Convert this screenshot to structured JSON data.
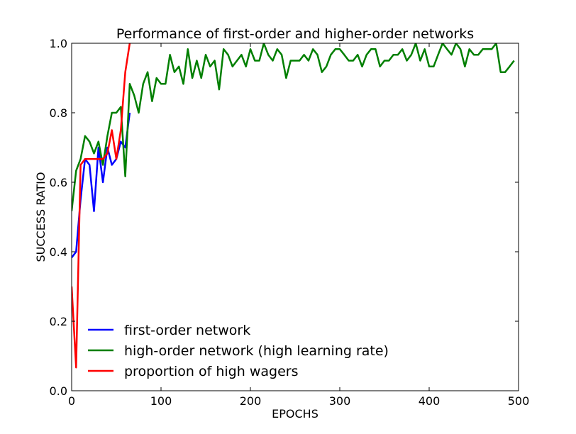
{
  "chart_data": {
    "type": "line",
    "title": "Performance of first-order and higher-order networks",
    "xlabel": "EPOCHS",
    "ylabel": "SUCCESS RATIO",
    "xlim": [
      0,
      500
    ],
    "ylim": [
      0,
      1
    ],
    "xticks": [
      "0",
      "100",
      "200",
      "300",
      "400",
      "500"
    ],
    "yticks": [
      "0.0",
      "0.2",
      "0.4",
      "0.6",
      "0.8",
      "1.0"
    ],
    "grid": false,
    "legend": "lower-left",
    "series": [
      {
        "name": "first-order network",
        "color": "#0000ff",
        "x": [
          0,
          5,
          10,
          15,
          20,
          25,
          30,
          35,
          40,
          45,
          50,
          55,
          60,
          65
        ],
        "y": [
          0.383,
          0.4,
          0.55,
          0.667,
          0.65,
          0.517,
          0.7,
          0.6,
          0.7,
          0.65,
          0.667,
          0.717,
          0.7,
          0.8
        ]
      },
      {
        "name": "high-order network (high learning rate)",
        "color": "#007f00",
        "x": [
          0,
          5,
          10,
          15,
          20,
          25,
          30,
          35,
          40,
          45,
          50,
          55,
          60,
          65,
          70,
          75,
          80,
          85,
          90,
          95,
          100,
          105,
          110,
          115,
          120,
          125,
          130,
          135,
          140,
          145,
          150,
          155,
          160,
          165,
          170,
          175,
          180,
          185,
          190,
          195,
          200,
          205,
          210,
          215,
          220,
          225,
          230,
          235,
          240,
          245,
          250,
          255,
          260,
          265,
          270,
          275,
          280,
          285,
          290,
          295,
          300,
          305,
          310,
          315,
          320,
          325,
          330,
          335,
          340,
          345,
          350,
          355,
          360,
          365,
          370,
          375,
          380,
          385,
          390,
          395,
          400,
          405,
          410,
          415,
          420,
          425,
          430,
          435,
          440,
          445,
          450,
          455,
          460,
          465,
          470,
          475,
          480,
          485,
          490,
          495
        ],
        "y": [
          0.517,
          0.633,
          0.667,
          0.733,
          0.717,
          0.683,
          0.717,
          0.65,
          0.733,
          0.8,
          0.8,
          0.817,
          0.617,
          0.883,
          0.85,
          0.8,
          0.883,
          0.917,
          0.833,
          0.9,
          0.883,
          0.883,
          0.967,
          0.917,
          0.933,
          0.883,
          0.983,
          0.9,
          0.95,
          0.9,
          0.967,
          0.933,
          0.95,
          0.867,
          0.983,
          0.967,
          0.933,
          0.95,
          0.967,
          0.933,
          0.983,
          0.95,
          0.95,
          1.0,
          0.967,
          0.95,
          0.983,
          0.967,
          0.9,
          0.95,
          0.95,
          0.95,
          0.967,
          0.95,
          0.983,
          0.967,
          0.917,
          0.933,
          0.967,
          0.983,
          0.983,
          0.967,
          0.95,
          0.95,
          0.967,
          0.933,
          0.967,
          0.983,
          0.983,
          0.933,
          0.95,
          0.95,
          0.967,
          0.967,
          0.983,
          0.95,
          0.967,
          1.0,
          0.95,
          0.983,
          0.933,
          0.933,
          0.967,
          1.0,
          0.983,
          0.967,
          1.0,
          0.983,
          0.933,
          0.983,
          0.967,
          0.967,
          0.983,
          0.983,
          0.983,
          1.0,
          0.917,
          0.917,
          0.933,
          0.95
        ]
      },
      {
        "name": "proportion of high wagers",
        "color": "#ff0000",
        "x": [
          0,
          5,
          10,
          15,
          20,
          25,
          30,
          35,
          40,
          45,
          50,
          55,
          60,
          65
        ],
        "y": [
          0.3,
          0.067,
          0.65,
          0.667,
          0.667,
          0.667,
          0.667,
          0.667,
          0.683,
          0.75,
          0.667,
          0.75,
          0.917,
          1.0
        ]
      }
    ]
  }
}
